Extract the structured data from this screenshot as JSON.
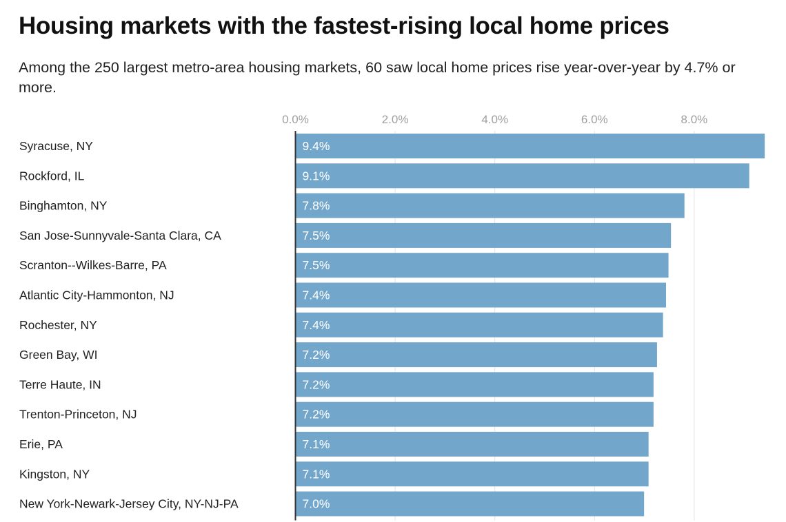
{
  "chart_data": {
    "type": "bar",
    "orientation": "horizontal",
    "title": "Housing markets with the fastest-rising local home prices",
    "subtitle": "Among the 250 largest metro-area housing markets, 60 saw local home prices rise year-over-year by 4.7% or more.",
    "categories": [
      "Syracuse, NY",
      "Rockford, IL",
      "Binghamton, NY",
      "San Jose-Sunnyvale-Santa Clara, CA",
      "Scranton--Wilkes-Barre, PA",
      "Atlantic City-Hammonton, NJ",
      "Rochester, NY",
      "Green Bay, WI",
      "Terre Haute, IN",
      "Trenton-Princeton, NJ",
      "Erie, PA",
      "Kingston, NY",
      "New York-Newark-Jersey City, NY-NJ-PA"
    ],
    "values": [
      9.4,
      9.09,
      7.79,
      7.52,
      7.47,
      7.42,
      7.36,
      7.24,
      7.17,
      7.17,
      7.07,
      7.07,
      6.98
    ],
    "data_labels": [
      "9.4%",
      "9.1%",
      "7.8%",
      "7.5%",
      "7.5%",
      "7.4%",
      "7.4%",
      "7.2%",
      "7.2%",
      "7.2%",
      "7.1%",
      "7.1%",
      "7.0%"
    ],
    "x_ticks": [
      0,
      2,
      4,
      6,
      8
    ],
    "x_tick_labels": [
      "0.0%",
      "2.0%",
      "4.0%",
      "6.0%",
      "8.0%"
    ],
    "xlim": [
      0,
      9.4
    ],
    "xaxis_position": "top",
    "grid": true,
    "bar_color": "#73a6cb",
    "label_color": "#ffffff",
    "tick_color": "#9e9e9e"
  }
}
